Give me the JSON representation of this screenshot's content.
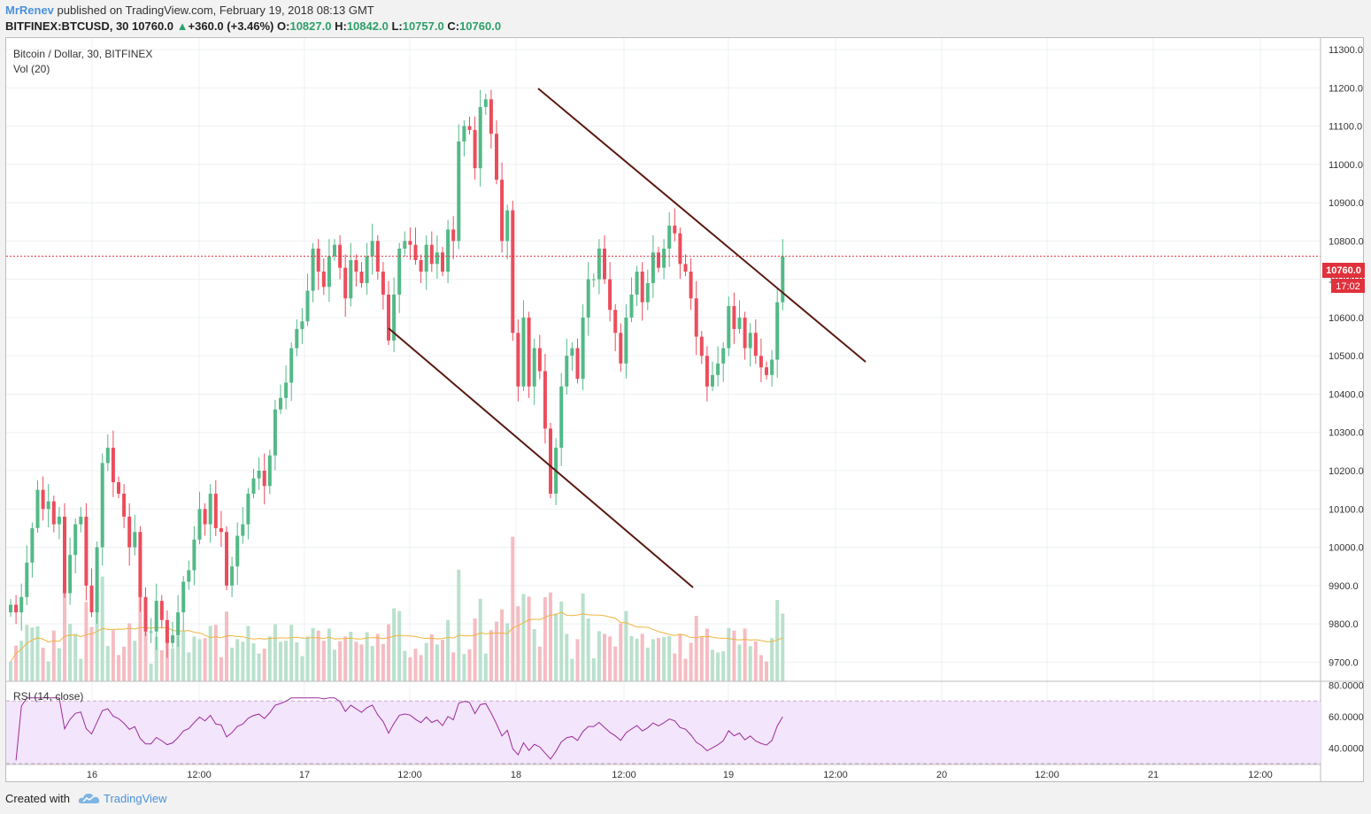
{
  "header": {
    "author": "MrRenev",
    "published_text": "published on TradingView.com, February 19, 2018 08:13 GMT",
    "symbol_line": "BITFINEX:BTCUSD, 30",
    "last": "10760.0",
    "change": "+360.0 (+3.46%)",
    "open_label": "O:",
    "open": "10827.0",
    "high_label": "H:",
    "high": "10842.0",
    "low_label": "L:",
    "low": "10757.0",
    "close_label": "C:",
    "close": "10760.0"
  },
  "chart_legend": {
    "title": "Bitcoin / Dollar, 30, BITFINEX",
    "volume": "Vol (20)",
    "rsi": "RSI (14, close)"
  },
  "price_badge": {
    "price": "10760.0",
    "countdown": "17:02"
  },
  "footer": {
    "created_with": "Created with",
    "brand": "TradingView"
  },
  "colors": {
    "up": "#53b987",
    "down": "#eb4d5c",
    "up_vol": "#b9e1cd",
    "down_vol": "#f5bcc2",
    "vol_ma": "#f0b43c",
    "trendline": "#5a1a12",
    "rsi_line": "#9b2c9b",
    "rsi_band": "#f3e5fb",
    "price_line": "#e0323c",
    "brand": "#4a90d9"
  },
  "chart_data": {
    "type": "candlestick",
    "symbol": "BITFINEX:BTCUSD",
    "interval_minutes": 30,
    "ylim": [
      9650,
      11330
    ],
    "price_ticks": [
      9700,
      9800,
      9900,
      10000,
      10100,
      10200,
      10300,
      10400,
      10500,
      10600,
      10700,
      10800,
      10900,
      11000,
      11100,
      11200,
      11300
    ],
    "price_tick_labels": [
      "9700.0",
      "9800.0",
      "9900.0",
      "10000.0",
      "10100.0",
      "10200.0",
      "10300.0",
      "10400.0",
      "10500.0",
      "10600.0",
      "10700.0",
      "10800.0",
      "10900.0",
      "11000.0",
      "11100.0",
      "11200.0",
      "11300.0"
    ],
    "time_labels": [
      "16",
      "12:00",
      "17",
      "12:00",
      "18",
      "12:00",
      "19",
      "12:00",
      "20",
      "12:00",
      "21",
      "12:00"
    ],
    "current_price": 10760,
    "closes": [
      9850,
      9830,
      9870,
      9960,
      10050,
      10150,
      10100,
      10120,
      10060,
      10080,
      9880,
      9980,
      10060,
      10080,
      9900,
      9830,
      10000,
      10220,
      10260,
      10170,
      10140,
      10080,
      10000,
      10040,
      9870,
      9780,
      9780,
      9860,
      9810,
      9750,
      9770,
      9830,
      9910,
      9940,
      10020,
      10100,
      10060,
      10140,
      10050,
      10040,
      9900,
      9950,
      10030,
      10060,
      10140,
      10180,
      10200,
      10160,
      10240,
      10360,
      10390,
      10430,
      10520,
      10570,
      10590,
      10670,
      10780,
      10720,
      10680,
      10760,
      10790,
      10730,
      10650,
      10750,
      10720,
      10690,
      10760,
      10800,
      10720,
      10660,
      10540,
      10660,
      10780,
      10800,
      10790,
      10750,
      10720,
      10790,
      10740,
      10770,
      10720,
      10830,
      10800,
      11060,
      11100,
      11090,
      10990,
      11150,
      11170,
      11080,
      10960,
      10800,
      10880,
      10560,
      10420,
      10600,
      10420,
      10520,
      10460,
      10310,
      10140,
      10260,
      10420,
      10500,
      10520,
      10440,
      10600,
      10700,
      10700,
      10780,
      10700,
      10620,
      10560,
      10480,
      10600,
      10660,
      10720,
      10640,
      10690,
      10770,
      10730,
      10780,
      10840,
      10820,
      10740,
      10720,
      10650,
      10550,
      10500,
      10420,
      10450,
      10480,
      10520,
      10630,
      10570,
      10600,
      10520,
      10560,
      10500,
      10470,
      10450,
      10490,
      10640,
      10760
    ],
    "volume_note": "volume bars shown without a price/volume axis",
    "rsi": {
      "period": 14,
      "ylim": [
        30,
        82
      ],
      "ticks": [
        40,
        60,
        80
      ],
      "tick_labels": [
        "40.0000",
        "60.0000",
        "80.0000"
      ],
      "bands": [
        30,
        70
      ]
    }
  }
}
